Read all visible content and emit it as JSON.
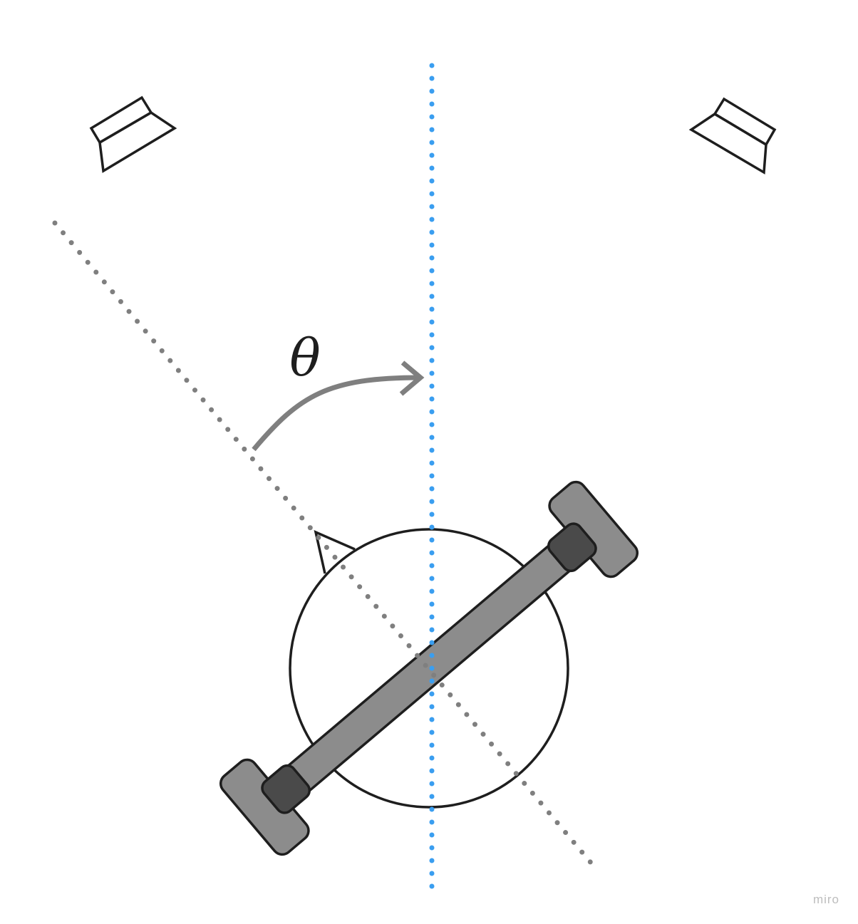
{
  "diagram": {
    "angle_symbol": "θ",
    "watermark": "miro",
    "colors": {
      "reference_line": "#3A9EF0",
      "heading_line": "#7F7F7F",
      "outline": "#1E1E1E",
      "axle_fill": "#8C8C8C",
      "wheel_fill": "#8C8C8C",
      "hub_fill": "#4A4A4A",
      "watermark": "#BDBDBD"
    }
  }
}
